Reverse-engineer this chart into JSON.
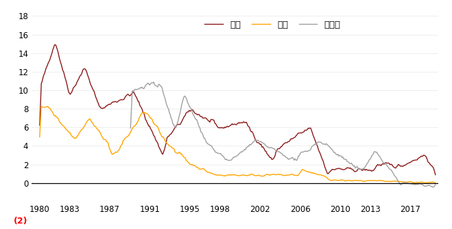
{
  "ylim": [
    -2,
    18
  ],
  "yticks": [
    0,
    2,
    4,
    6,
    8,
    10,
    12,
    14,
    16,
    18
  ],
  "ytick_labels": [
    "0",
    "2",
    "4",
    "6",
    "8",
    "10",
    "12",
    "14",
    "16",
    "18"
  ],
  "xtick_years": [
    1980,
    1983,
    1987,
    1991,
    1995,
    1998,
    2002,
    2006,
    2010,
    2013,
    2017
  ],
  "negative_label": "(2)",
  "legend": [
    "美国",
    "日本",
    "欧元区"
  ],
  "colors": [
    "#8B1A1A",
    "#FFA500",
    "#A0A0A0"
  ],
  "linewidth": 1.0,
  "background_color": "#ffffff"
}
